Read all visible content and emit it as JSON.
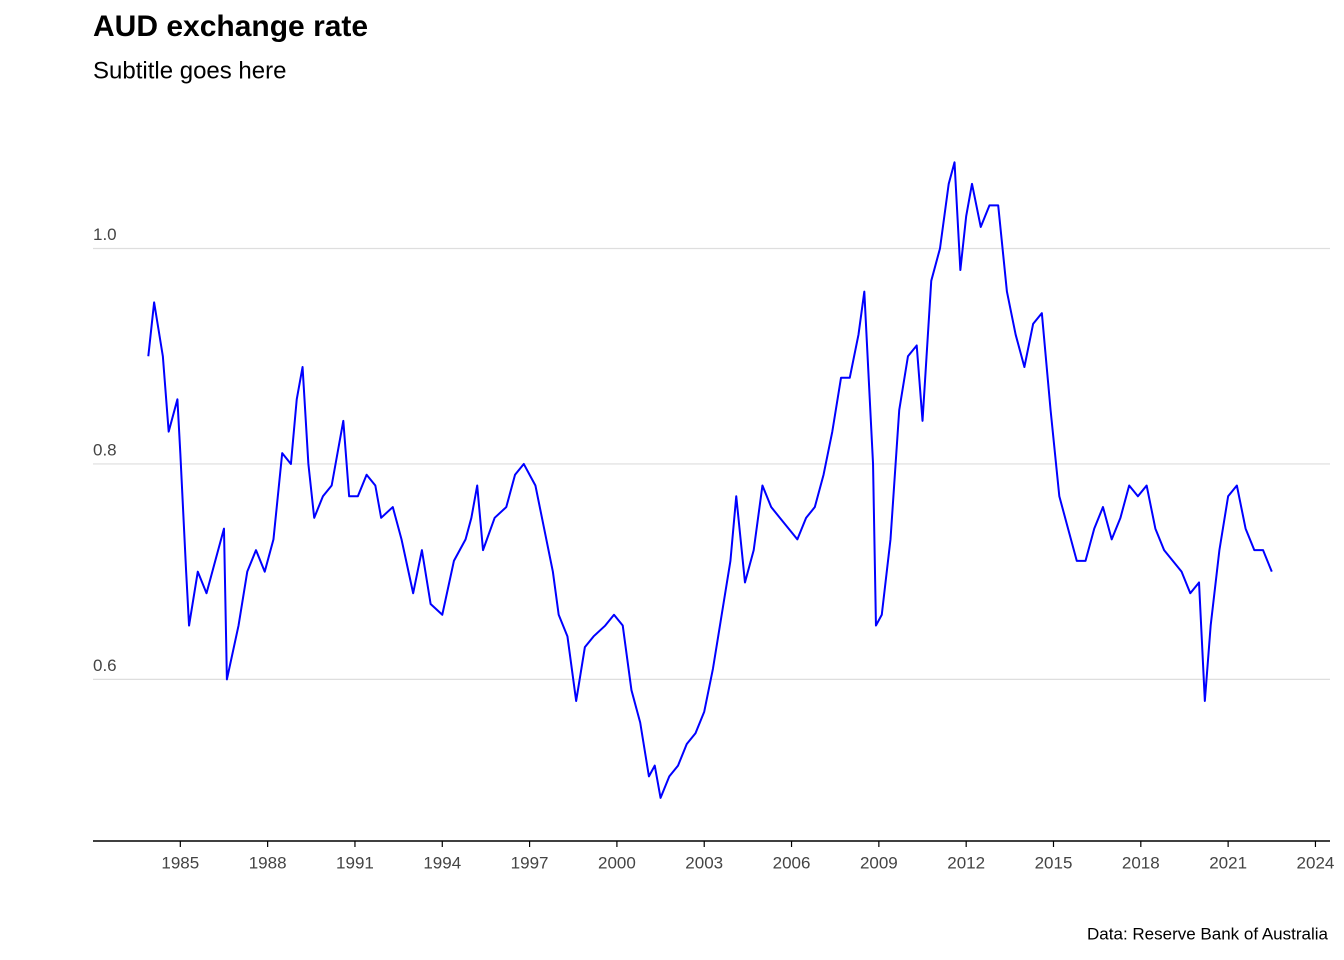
{
  "chart_data": {
    "type": "line",
    "title": "AUD exchange rate",
    "subtitle": "Subtitle goes here",
    "caption": "Data: Reserve Bank of Australia",
    "color": "#0000ff",
    "grid": true,
    "xlim": [
      1982,
      2024.5
    ],
    "ylim": [
      0.45,
      1.11
    ],
    "xticks": [
      1985,
      1988,
      1991,
      1994,
      1997,
      2000,
      2003,
      2006,
      2009,
      2012,
      2015,
      2018,
      2021,
      2024
    ],
    "yticks": [
      0.6,
      0.8,
      {
        "value": 1,
        "label": "1.0"
      }
    ],
    "x": [
      1983.9,
      1984.1,
      1984.4,
      1984.6,
      1984.9,
      1985.0,
      1985.2,
      1985.3,
      1985.6,
      1985.9,
      1986.2,
      1986.5,
      1986.6,
      1987.0,
      1987.3,
      1987.6,
      1987.9,
      1988.2,
      1988.5,
      1988.8,
      1989.0,
      1989.2,
      1989.4,
      1989.6,
      1989.9,
      1990.2,
      1990.6,
      1990.8,
      1991.1,
      1991.4,
      1991.7,
      1991.9,
      1992.3,
      1992.6,
      1993.0,
      1993.3,
      1993.6,
      1994.0,
      1994.4,
      1994.8,
      1995.0,
      1995.2,
      1995.4,
      1995.8,
      1996.2,
      1996.5,
      1996.8,
      1997.0,
      1997.2,
      1997.5,
      1997.8,
      1998.0,
      1998.3,
      1998.6,
      1998.9,
      1999.2,
      1999.6,
      1999.9,
      2000.2,
      2000.5,
      2000.8,
      2001.1,
      2001.3,
      2001.5,
      2001.8,
      2002.1,
      2002.4,
      2002.7,
      2003.0,
      2003.3,
      2003.6,
      2003.9,
      2004.1,
      2004.4,
      2004.7,
      2005.0,
      2005.3,
      2005.6,
      2005.9,
      2006.2,
      2006.5,
      2006.8,
      2007.1,
      2007.4,
      2007.7,
      2008.0,
      2008.3,
      2008.5,
      2008.8,
      2008.9,
      2009.1,
      2009.4,
      2009.7,
      2010.0,
      2010.3,
      2010.5,
      2010.8,
      2011.1,
      2011.4,
      2011.6,
      2011.8,
      2012.0,
      2012.2,
      2012.5,
      2012.8,
      2013.1,
      2013.4,
      2013.7,
      2014.0,
      2014.3,
      2014.6,
      2014.9,
      2015.2,
      2015.5,
      2015.8,
      2016.1,
      2016.4,
      2016.7,
      2017.0,
      2017.3,
      2017.6,
      2017.9,
      2018.2,
      2018.5,
      2018.8,
      2019.1,
      2019.4,
      2019.7,
      2020.0,
      2020.2,
      2020.4,
      2020.7,
      2021.0,
      2021.3,
      2021.6,
      2021.9,
      2022.2,
      2022.5
    ],
    "values": [
      0.9,
      0.95,
      0.9,
      0.83,
      0.86,
      0.81,
      0.7,
      0.65,
      0.7,
      0.68,
      0.71,
      0.74,
      0.6,
      0.65,
      0.7,
      0.72,
      0.7,
      0.73,
      0.81,
      0.8,
      0.86,
      0.89,
      0.8,
      0.75,
      0.77,
      0.78,
      0.84,
      0.77,
      0.77,
      0.79,
      0.78,
      0.75,
      0.76,
      0.73,
      0.68,
      0.72,
      0.67,
      0.66,
      0.71,
      0.73,
      0.75,
      0.78,
      0.72,
      0.75,
      0.76,
      0.79,
      0.8,
      0.79,
      0.78,
      0.74,
      0.7,
      0.66,
      0.64,
      0.58,
      0.63,
      0.64,
      0.65,
      0.66,
      0.65,
      0.59,
      0.56,
      0.51,
      0.52,
      0.49,
      0.51,
      0.52,
      0.54,
      0.55,
      0.57,
      0.61,
      0.66,
      0.71,
      0.77,
      0.69,
      0.72,
      0.78,
      0.76,
      0.75,
      0.74,
      0.73,
      0.75,
      0.76,
      0.79,
      0.83,
      0.88,
      0.88,
      0.92,
      0.96,
      0.8,
      0.65,
      0.66,
      0.73,
      0.85,
      0.9,
      0.91,
      0.84,
      0.97,
      1.0,
      1.06,
      1.08,
      0.98,
      1.03,
      1.06,
      1.02,
      1.04,
      1.04,
      0.96,
      0.92,
      0.89,
      0.93,
      0.94,
      0.85,
      0.77,
      0.74,
      0.71,
      0.71,
      0.74,
      0.76,
      0.73,
      0.75,
      0.78,
      0.77,
      0.78,
      0.74,
      0.72,
      0.71,
      0.7,
      0.68,
      0.69,
      0.58,
      0.65,
      0.72,
      0.77,
      0.78,
      0.74,
      0.72,
      0.72,
      0.7
    ]
  }
}
